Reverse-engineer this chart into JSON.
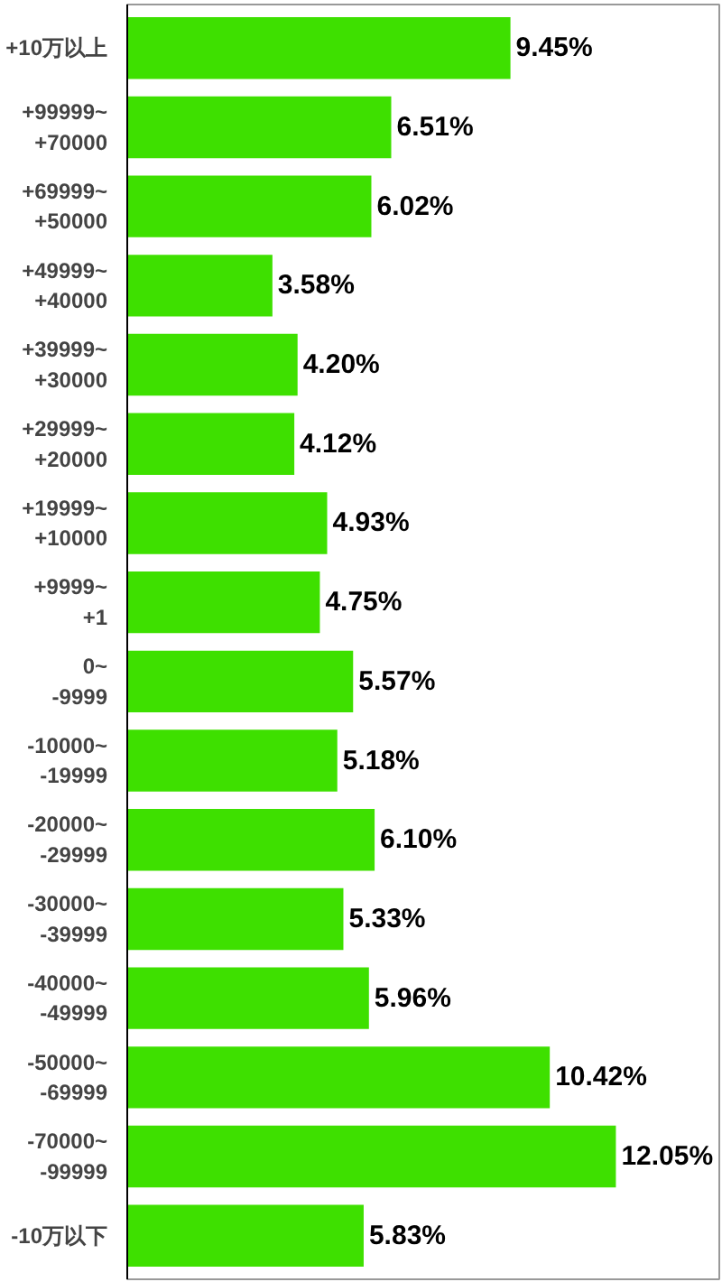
{
  "chart_data": {
    "type": "bar",
    "orientation": "horizontal",
    "categories": [
      "+10万以上",
      "+99999~\n+70000",
      "+69999~\n+50000",
      "+49999~\n+40000",
      "+39999~\n+30000",
      "+29999~\n+20000",
      "+19999~\n+10000",
      "+9999~\n+1",
      "0~\n-9999",
      "-10000~\n-19999",
      "-20000~\n-29999",
      "-30000~\n-39999",
      "-40000~\n-49999",
      "-50000~\n-69999",
      "-70000~\n-99999",
      "-10万以下"
    ],
    "values": [
      9.45,
      6.51,
      6.02,
      3.58,
      4.2,
      4.12,
      4.93,
      4.75,
      5.57,
      5.18,
      6.1,
      5.33,
      5.96,
      10.42,
      12.05,
      5.83
    ],
    "value_labels": [
      "9.45%",
      "6.51%",
      "6.02%",
      "3.58%",
      "4.20%",
      "4.12%",
      "4.93%",
      "4.75%",
      "5.57%",
      "5.18%",
      "6.10%",
      "5.33%",
      "5.96%",
      "10.42%",
      "12.05%",
      "5.83%"
    ],
    "color": "#3ee000",
    "xlim": [
      0,
      14.6
    ],
    "grid": false,
    "tick_labels": "y"
  }
}
